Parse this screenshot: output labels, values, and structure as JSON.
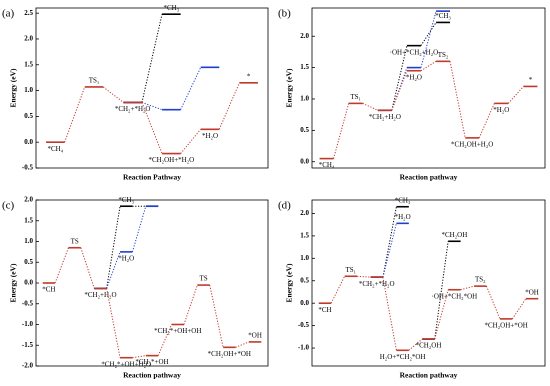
{
  "chart_data": [
    {
      "type": "energy-profile",
      "panel": "(a)",
      "xlabel": "Reaction Pathway",
      "ylabel": "Energy (eV)",
      "ylim": [
        -0.5,
        2.6
      ],
      "yticks": [
        -0.5,
        {
          "value": 0,
          "label": "0.0"
        },
        0.5,
        {
          "value": 1,
          "label": "1.0"
        },
        1.5,
        {
          "value": 2,
          "label": "2.0"
        },
        2.5
      ],
      "series": [
        {
          "color": "#000000",
          "values": [
            null,
            null,
            0.77,
            2.48,
            null,
            null
          ],
          "labels": [
            null,
            null,
            null,
            "*CH₃",
            null,
            null
          ]
        },
        {
          "color": "#1f3fcf",
          "values": [
            null,
            null,
            0.77,
            0.63,
            1.45,
            null
          ],
          "labels": [
            null,
            null,
            null,
            null,
            null,
            null
          ]
        },
        {
          "color": "#c0392b",
          "values": [
            0,
            1.07,
            0.77,
            -0.22,
            0.25,
            1.15
          ],
          "labels": [
            "*CH₄",
            "TS₁",
            "*CH₂+*H₂O",
            "*CH₂OH+*H₂O",
            "*H₂O",
            "*"
          ]
        }
      ]
    },
    {
      "type": "energy-profile",
      "panel": "(b)",
      "xlabel": "Reaction pathway",
      "ylabel": "Energy (eV)",
      "ylim": [
        -0.1,
        2.45
      ],
      "yticks": [
        {
          "value": 0,
          "label": "0.0"
        },
        0.5,
        {
          "value": 1,
          "label": "1.0"
        },
        1.5,
        {
          "value": 2,
          "label": "2.0"
        }
      ],
      "series": [
        {
          "color": "#000000",
          "values": [
            null,
            null,
            0.82,
            1.85,
            2.22,
            null,
            null,
            null
          ],
          "labels": [
            null,
            null,
            null,
            "·OH+*CH₂+H₂O",
            "*CH₃",
            null,
            null,
            null
          ]
        },
        {
          "color": "#1f3fcf",
          "values": [
            null,
            null,
            0.82,
            1.5,
            2.4,
            null,
            null,
            null
          ],
          "labels": [
            null,
            null,
            null,
            null,
            null,
            null,
            null,
            null
          ]
        },
        {
          "color": "#c0392b",
          "values": [
            0.05,
            0.93,
            0.82,
            1.45,
            1.6,
            0.38,
            0.93,
            1.2
          ],
          "labels": [
            "*CH₄",
            "TS₁",
            "*CH₂+H₂O",
            "*H₂O",
            "TS₂",
            "*CH₂OH+H₂O",
            "*H₂O",
            "*"
          ]
        }
      ]
    },
    {
      "type": "energy-profile",
      "panel": "(c)",
      "xlabel": "Reaction pathway",
      "ylabel": "Energy (eV)",
      "ylim": [
        -2.0,
        2.0
      ],
      "yticks": [
        {
          "value": -2,
          "label": "-2.0"
        },
        -1.5,
        {
          "value": -1,
          "label": "-1.0"
        },
        -0.5,
        {
          "value": 0,
          "label": "0.0"
        },
        0.5,
        {
          "value": 1,
          "label": "1.0"
        },
        1.5,
        {
          "value": 2,
          "label": "2.0"
        }
      ],
      "series": [
        {
          "color": "#000000",
          "values": [
            null,
            null,
            -0.13,
            1.85,
            1.85,
            null,
            null,
            null,
            null
          ],
          "labels": [
            null,
            null,
            null,
            "*CH₃",
            null,
            null,
            null,
            null,
            null
          ]
        },
        {
          "color": "#1f3fcf",
          "values": [
            null,
            null,
            -0.13,
            0.75,
            1.85,
            null,
            null,
            null,
            null
          ],
          "labels": [
            null,
            null,
            null,
            "*H₂O",
            null,
            null,
            null,
            null,
            null
          ]
        },
        {
          "color": "#c0392b",
          "values": [
            0,
            0.85,
            -0.13,
            -1.8,
            -1.75,
            -1.0,
            -0.05,
            -1.55,
            -1.42
          ],
          "labels": [
            "*CH",
            "TS",
            "*CH₂+H₂O",
            "*CH₂*+OH+H₂O",
            "*CH₃*+OH",
            "*CH₂*+OH+OH",
            "TS",
            "*CH₂OH+*OH",
            "*OH"
          ]
        }
      ]
    },
    {
      "type": "energy-profile",
      "panel": "(d)",
      "xlabel": "Reaction pathway",
      "ylabel": "Energy (eV)",
      "ylim": [
        -1.4,
        2.3
      ],
      "yticks": [
        {
          "value": -1,
          "label": "-1.0"
        },
        -0.5,
        {
          "value": 0,
          "label": "0.0"
        },
        0.5,
        {
          "value": 1,
          "label": "1.0"
        },
        1.5,
        {
          "value": 2,
          "label": "2.0"
        }
      ],
      "series": [
        {
          "color": "#000000",
          "values": [
            null,
            null,
            0.58,
            2.15,
            null,
            null,
            null,
            null,
            null
          ],
          "labels": [
            null,
            null,
            null,
            "*CH₃",
            null,
            null,
            null,
            null,
            null
          ]
        },
        {
          "color": "#1f3fcf",
          "values": [
            null,
            null,
            0.58,
            1.78,
            null,
            null,
            null,
            null,
            null
          ],
          "labels": [
            null,
            null,
            null,
            "*H₂O",
            null,
            null,
            null,
            null,
            null
          ]
        },
        {
          "color": "#000000",
          "values": [
            null,
            null,
            null,
            null,
            -0.8,
            1.38,
            null,
            null,
            null
          ],
          "labels": [
            null,
            null,
            null,
            null,
            null,
            "*CH₂OH",
            null,
            null,
            null
          ]
        },
        {
          "color": "#c0392b",
          "values": [
            0,
            0.6,
            0.58,
            -1.05,
            -0.8,
            0.3,
            0.38,
            -0.35,
            0.1
          ],
          "labels": [
            "*CH",
            "TS₁",
            "*CH₂+*H₂O",
            "H₂O+*CH₂*OH",
            "*CH₂OH",
            "·OH+*CH₂*OH",
            "TS₂",
            "*CH₂OH+*OH",
            "*OH"
          ]
        }
      ]
    }
  ]
}
